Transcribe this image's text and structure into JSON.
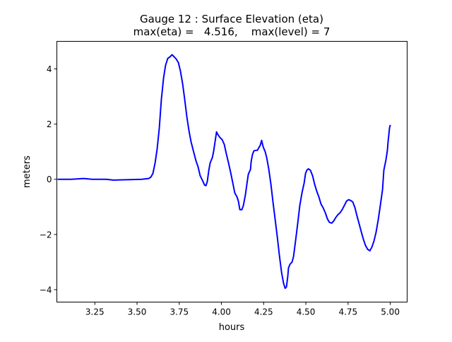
{
  "chart_data": {
    "type": "line",
    "title": "Gauge 12 : Surface Elevation (eta)",
    "subtitle": "max(eta) =   4.516,    max(level) = 7",
    "xlabel": "hours",
    "ylabel": "meters",
    "xlim": [
      3.025,
      5.1
    ],
    "ylim": [
      -4.45,
      5.0
    ],
    "xticks": [
      3.25,
      3.5,
      3.75,
      4.0,
      4.25,
      4.5,
      4.75,
      5.0
    ],
    "xtick_labels": [
      "3.25",
      "3.50",
      "3.75",
      "4.00",
      "4.25",
      "4.50",
      "4.75",
      "5.00"
    ],
    "yticks": [
      -4,
      -2,
      0,
      2,
      4
    ],
    "ytick_labels": [
      "−4",
      "−2",
      "0",
      "2",
      "4"
    ],
    "grid": false,
    "series": [
      {
        "name": "eta",
        "color": "#0000ff",
        "x": [
          3.029,
          3.109,
          3.184,
          3.234,
          3.318,
          3.36,
          3.527,
          3.569,
          3.582,
          3.594,
          3.607,
          3.619,
          3.632,
          3.644,
          3.657,
          3.669,
          3.682,
          3.695,
          3.707,
          3.72,
          3.732,
          3.745,
          3.757,
          3.77,
          3.782,
          3.795,
          3.808,
          3.82,
          3.833,
          3.849,
          3.862,
          3.874,
          3.887,
          3.9,
          3.908,
          3.916,
          3.925,
          3.933,
          3.946,
          3.954,
          3.962,
          3.971,
          3.979,
          3.992,
          4.004,
          4.017,
          4.029,
          4.042,
          4.054,
          4.067,
          4.079,
          4.092,
          4.1,
          4.109,
          4.121,
          4.13,
          4.142,
          4.151,
          4.159,
          4.172,
          4.176,
          4.184,
          4.192,
          4.205,
          4.213,
          4.222,
          4.23,
          4.238,
          4.247,
          4.259,
          4.268,
          4.28,
          4.293,
          4.305,
          4.318,
          4.331,
          4.343,
          4.356,
          4.368,
          4.377,
          4.385,
          4.393,
          4.397,
          4.406,
          4.418,
          4.427,
          4.439,
          4.452,
          4.464,
          4.477,
          4.49,
          4.498,
          4.506,
          4.515,
          4.527,
          4.54,
          4.552,
          4.565,
          4.577,
          4.59,
          4.602,
          4.615,
          4.628,
          4.64,
          4.653,
          4.665,
          4.678,
          4.69,
          4.703,
          4.715,
          4.728,
          4.741,
          4.753,
          4.766,
          4.778,
          4.791,
          4.803,
          4.816,
          4.828,
          4.841,
          4.854,
          4.866,
          4.879,
          4.891,
          4.904,
          4.916,
          4.929,
          4.941,
          4.954,
          4.962,
          4.975,
          4.983,
          4.987,
          4.996,
          5.0
        ],
        "y": [
          0,
          0,
          0.03,
          0,
          0,
          -0.03,
          0,
          0.03,
          0.08,
          0.21,
          0.59,
          1.1,
          1.87,
          2.9,
          3.67,
          4.13,
          4.38,
          4.44,
          4.516,
          4.44,
          4.36,
          4.23,
          3.92,
          3.46,
          2.9,
          2.26,
          1.74,
          1.36,
          1.05,
          0.67,
          0.44,
          0.13,
          -0.03,
          -0.21,
          -0.23,
          -0.08,
          0.31,
          0.59,
          0.79,
          1.03,
          1.36,
          1.72,
          1.62,
          1.51,
          1.44,
          1.26,
          0.92,
          0.59,
          0.26,
          -0.13,
          -0.49,
          -0.64,
          -0.79,
          -1.1,
          -1.1,
          -0.95,
          -0.56,
          -0.15,
          0.18,
          0.36,
          0.64,
          0.9,
          1.03,
          1.05,
          1.05,
          1.15,
          1.23,
          1.41,
          1.18,
          1.0,
          0.79,
          0.38,
          -0.18,
          -0.82,
          -1.46,
          -2.1,
          -2.74,
          -3.38,
          -3.77,
          -3.95,
          -3.9,
          -3.51,
          -3.21,
          -3.08,
          -3.0,
          -2.8,
          -2.23,
          -1.59,
          -0.95,
          -0.49,
          -0.13,
          0.21,
          0.33,
          0.38,
          0.33,
          0.13,
          -0.18,
          -0.44,
          -0.64,
          -0.9,
          -1.03,
          -1.21,
          -1.44,
          -1.56,
          -1.59,
          -1.51,
          -1.38,
          -1.28,
          -1.21,
          -1.1,
          -0.95,
          -0.79,
          -0.74,
          -0.77,
          -0.82,
          -1.03,
          -1.33,
          -1.62,
          -1.9,
          -2.18,
          -2.41,
          -2.54,
          -2.59,
          -2.46,
          -2.23,
          -1.92,
          -1.46,
          -0.95,
          -0.38,
          0.33,
          0.72,
          1.05,
          1.36,
          1.87,
          1.97
        ]
      }
    ]
  }
}
